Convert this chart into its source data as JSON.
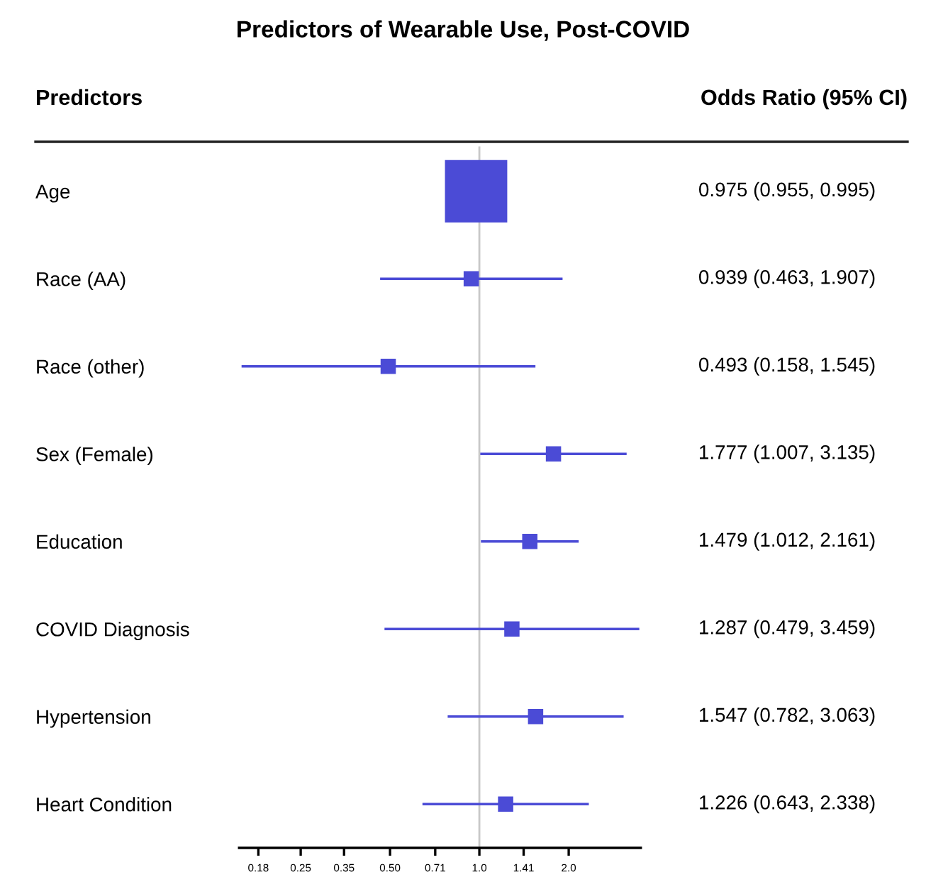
{
  "chart_data": {
    "type": "scatter",
    "orientation": "horizontal",
    "title": "Predictors of Wearable Use, Post-COVID",
    "annotations": [
      "Predictors",
      "Odds Ratio (95% CI)"
    ],
    "categories": [
      "Age",
      "Race (AA)",
      "Race (other)",
      "Sex (Female)",
      "Education",
      "COVID Diagnosis",
      "Hypertension",
      "Heart Condition"
    ],
    "values": [
      0.975,
      0.939,
      0.493,
      1.777,
      1.479,
      1.287,
      1.547,
      1.226
    ],
    "errors": [
      null,
      [
        0.463,
        1.907
      ],
      [
        0.158,
        1.545
      ],
      [
        1.007,
        3.135
      ],
      [
        1.012,
        2.161
      ],
      [
        0.479,
        3.459
      ],
      [
        0.782,
        3.063
      ],
      [
        0.643,
        2.338
      ]
    ],
    "value_labels": [
      "0.975 (0.955, 0.995)",
      "0.939 (0.463, 1.907)",
      "0.493 (0.158, 1.545)",
      "1.777 (1.007, 3.135)",
      "1.479 (1.012, 2.161)",
      "1.287 (0.479, 3.459)",
      "1.547 (0.782, 3.063)",
      "1.226 (0.643, 2.338)"
    ],
    "sizes": [
      1,
      0.06,
      0.06,
      0.06,
      0.06,
      0.06,
      0.06,
      0.06
    ],
    "color": "#4b4bd6",
    "marker": "square",
    "log": "x",
    "xlim": [
      0.155,
      3.5
    ],
    "xticks": [
      0.18,
      0.25,
      0.35,
      {
        "value": 0.5,
        "label": "0.50"
      },
      0.71,
      {
        "value": 1.0,
        "label": "1.0"
      },
      1.41,
      {
        "value": 2.0,
        "label": "2.0"
      }
    ],
    "ref_lines": [
      {
        "axis": "x",
        "value": 1.0,
        "label": null,
        "color": "#c8c8c8"
      }
    ],
    "grid": false
  }
}
